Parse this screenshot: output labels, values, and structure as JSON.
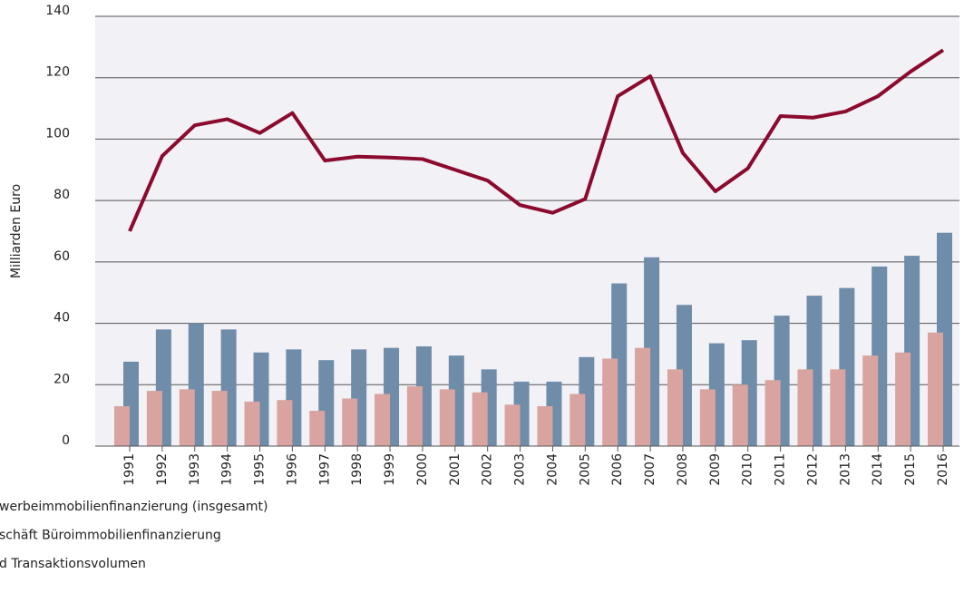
{
  "chart_data": {
    "type": "bar-line",
    "y_label": "Milliarden Euro",
    "categories": [
      "1991",
      "1992",
      "1993",
      "1994",
      "1995",
      "1996",
      "1997",
      "1998",
      "1999",
      "2000",
      "2001",
      "2002",
      "2003",
      "2004",
      "2005",
      "2006",
      "2007",
      "2008",
      "2009",
      "2010",
      "2011",
      "2012",
      "2013",
      "2014",
      "2015",
      "2016"
    ],
    "series": [
      {
        "name": "werbeimmobilienfinanzierung (insgesamt)",
        "kind": "line",
        "color": "#8b0a2e",
        "values": [
          70,
          94.5,
          104.5,
          106.5,
          102,
          108.5,
          93,
          94.3,
          94,
          93.5,
          90,
          86.5,
          78.5,
          76,
          80.5,
          114,
          120.5,
          95.5,
          83,
          90.5,
          107.5,
          107,
          109,
          114,
          122,
          129
        ]
      },
      {
        "name": "schäft Büroimmobilienfinanzierung",
        "kind": "bar",
        "color": "#6f8ca8",
        "values": [
          27.5,
          38,
          40,
          38,
          30.5,
          31.5,
          28,
          31.5,
          32,
          32.5,
          29.5,
          25,
          21,
          21,
          29,
          53,
          61.5,
          46,
          33.5,
          34.5,
          42.5,
          49,
          51.5,
          58.5,
          62,
          69.5
        ]
      },
      {
        "name": "d Transaktionsvolumen",
        "kind": "bar",
        "color": "#d9a3a0",
        "values": [
          13,
          18,
          18.5,
          18,
          14.5,
          15,
          11.5,
          15.5,
          17,
          19.5,
          18.5,
          17.5,
          13.5,
          13,
          17,
          28.5,
          32,
          25,
          18.5,
          20,
          21.5,
          25,
          25,
          29.5,
          30.5,
          37
        ]
      }
    ],
    "ylim": [
      0,
      140
    ],
    "yticks": [
      0,
      20,
      40,
      60,
      80,
      100,
      120,
      140
    ],
    "grid": true
  }
}
